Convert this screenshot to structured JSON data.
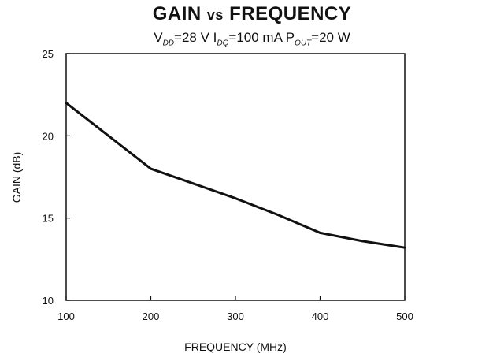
{
  "chart_data": {
    "type": "line",
    "title": {
      "part1": "GAIN ",
      "vs": "vs",
      "part2": " FREQUENCY"
    },
    "subtitle": {
      "v": "V",
      "v_sub": "DD",
      "v_val": "=28 V ",
      "i": "I",
      "i_sub": "DQ",
      "i_val": "=100 mA ",
      "p": "P",
      "p_sub": "OUT",
      "p_val": "=20 W"
    },
    "xlabel": "FREQUENCY (MHz)",
    "ylabel": "GAIN (dB)",
    "xlim": [
      100,
      500
    ],
    "ylim": [
      10,
      25
    ],
    "xticks": [
      100,
      200,
      300,
      400,
      500
    ],
    "yticks": [
      10,
      15,
      20,
      25
    ],
    "grid": false,
    "series": [
      {
        "x": [
          100,
          150,
          200,
          250,
          300,
          350,
          400,
          450,
          500
        ],
        "y": [
          22.0,
          20.0,
          18.0,
          17.1,
          16.2,
          15.2,
          14.1,
          13.6,
          13.2
        ]
      }
    ]
  }
}
